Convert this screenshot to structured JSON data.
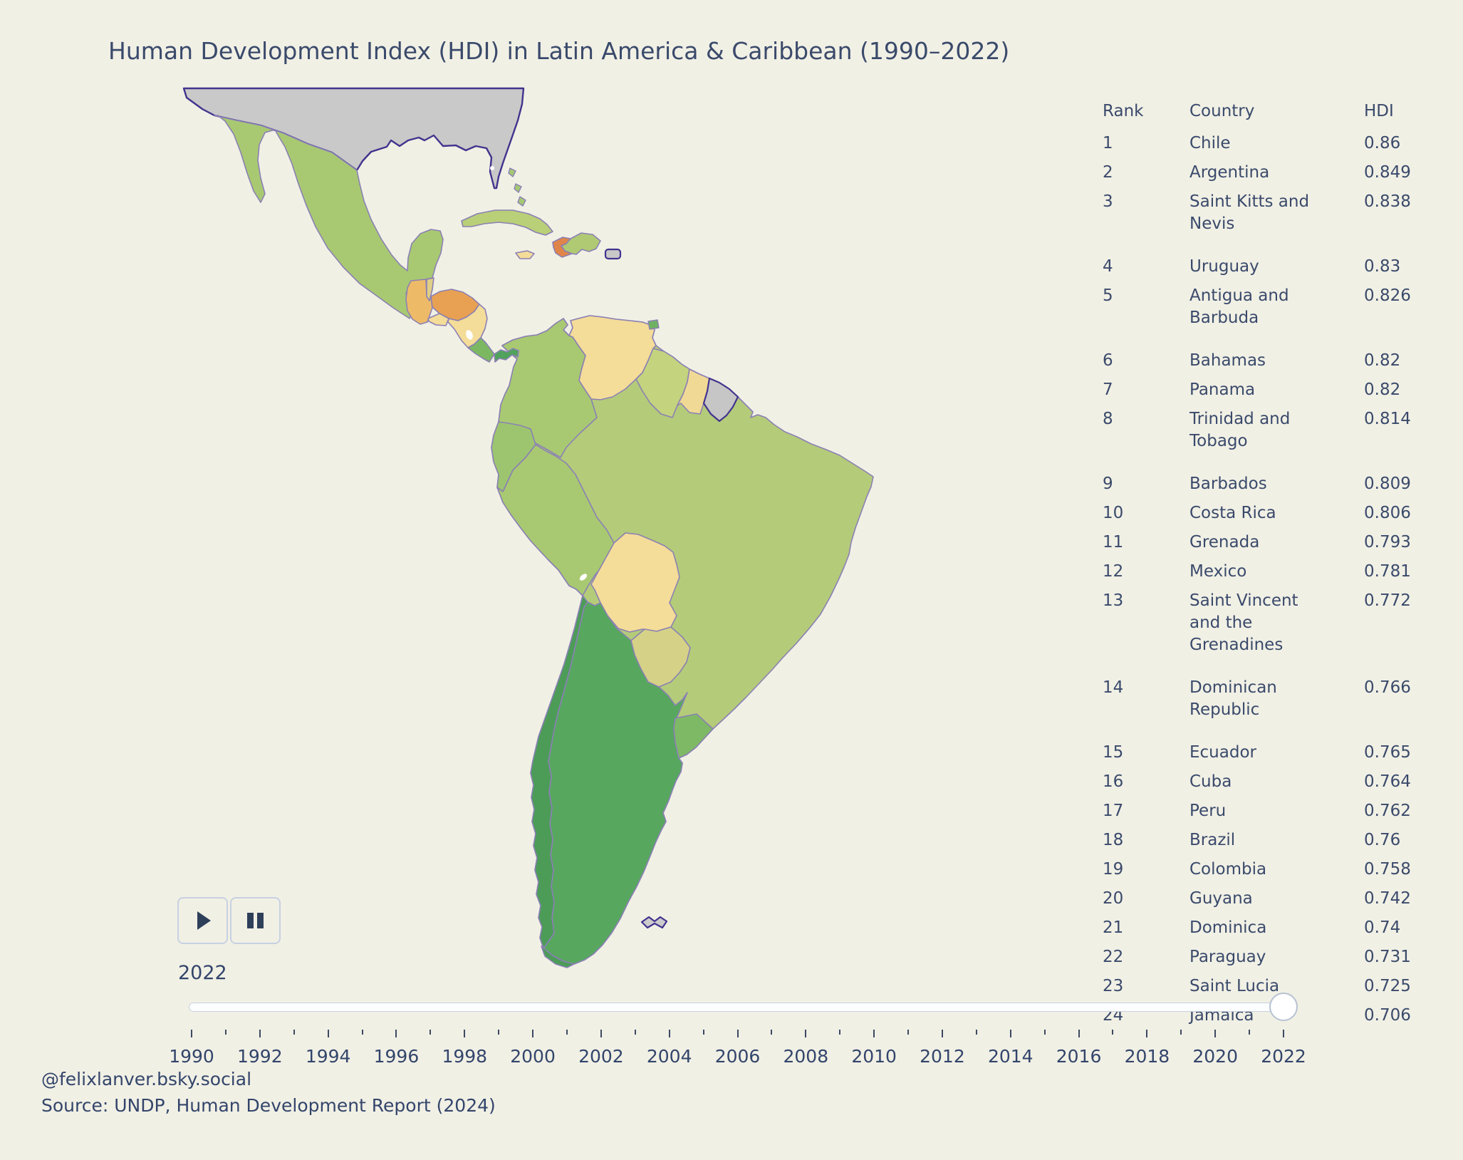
{
  "title": "Human Development Index (HDI) in Latin America & Caribbean (1990–2022)",
  "table": {
    "headers": {
      "rank": "Rank",
      "country": "Country",
      "hdi": "HDI"
    },
    "rows": [
      {
        "rank": "1",
        "country": "Chile",
        "hdi": "0.86"
      },
      {
        "rank": "2",
        "country": "Argentina",
        "hdi": "0.849"
      },
      {
        "rank": "3",
        "country": "Saint Kitts and Nevis",
        "hdi": "0.838"
      },
      {
        "rank": "4",
        "country": "Uruguay",
        "hdi": "0.83"
      },
      {
        "rank": "5",
        "country": "Antigua and Barbuda",
        "hdi": "0.826"
      },
      {
        "rank": "6",
        "country": "Bahamas",
        "hdi": "0.82"
      },
      {
        "rank": "7",
        "country": "Panama",
        "hdi": "0.82"
      },
      {
        "rank": "8",
        "country": "Trinidad and Tobago",
        "hdi": "0.814"
      },
      {
        "rank": "9",
        "country": "Barbados",
        "hdi": "0.809"
      },
      {
        "rank": "10",
        "country": "Costa Rica",
        "hdi": "0.806"
      },
      {
        "rank": "11",
        "country": "Grenada",
        "hdi": "0.793"
      },
      {
        "rank": "12",
        "country": "Mexico",
        "hdi": "0.781"
      },
      {
        "rank": "13",
        "country": "Saint Vincent and the Grenadines",
        "hdi": "0.772"
      },
      {
        "rank": "14",
        "country": "Dominican Republic",
        "hdi": "0.766"
      },
      {
        "rank": "15",
        "country": "Ecuador",
        "hdi": "0.765"
      },
      {
        "rank": "16",
        "country": "Cuba",
        "hdi": "0.764"
      },
      {
        "rank": "17",
        "country": "Peru",
        "hdi": "0.762"
      },
      {
        "rank": "18",
        "country": "Brazil",
        "hdi": "0.76"
      },
      {
        "rank": "19",
        "country": "Colombia",
        "hdi": "0.758"
      },
      {
        "rank": "20",
        "country": "Guyana",
        "hdi": "0.742"
      },
      {
        "rank": "21",
        "country": "Dominica",
        "hdi": "0.74"
      },
      {
        "rank": "22",
        "country": "Paraguay",
        "hdi": "0.731"
      },
      {
        "rank": "23",
        "country": "Saint Lucia",
        "hdi": "0.725"
      },
      {
        "rank": "24",
        "country": "Jamaica",
        "hdi": "0.706"
      }
    ]
  },
  "controls": {
    "year_display": "2022"
  },
  "slider": {
    "start_year": 1990,
    "end_year": 2022,
    "current_year": 2022,
    "tick_labels": [
      "1990",
      "1992",
      "1994",
      "1996",
      "1998",
      "2000",
      "2002",
      "2004",
      "2006",
      "2008",
      "2010",
      "2012",
      "2014",
      "2016",
      "2018",
      "2020",
      "2022"
    ]
  },
  "attribution": {
    "line1": "@felixlanver.bsky.social",
    "line2": "Source: UNDP, Human Development Report (2024)"
  },
  "colors": {
    "background": "#f1f0e5",
    "text": "#3a4a6b",
    "border_internal": "#8b80b4",
    "border_external": "#42338e",
    "lake": "#ffffff"
  },
  "map": {
    "fills": {
      "usa": "#c9c9c9",
      "mexico": "#a8c972",
      "guatemala": "#edbb68",
      "belize": "#e0cf86",
      "honduras": "#e8a152",
      "el_salvador": "#f4dc99",
      "nicaragua": "#f4dc99",
      "costa_rica": "#7cb862",
      "panama": "#51a25c",
      "cuba": "#b9cf78",
      "jamaica": "#f4dc99",
      "haiti": "#e0854a",
      "dominican_republic": "#b0ca74",
      "puerto_rico": "#c9c9c9",
      "bahamas": "#a4c873",
      "trinidad_and_tobago": "#6fb163",
      "brazil": "#b4cb7a",
      "colombia": "#a8c972",
      "venezuela": "#f4dc99",
      "guyana": "#c3d37e",
      "suriname": "#f0d995",
      "french_guiana": "#c6c6c6",
      "ecuador": "#9dc56f",
      "peru": "#a8c972",
      "bolivia": "#f4dc99",
      "paraguay": "#d5d287",
      "argentina": "#57a75f",
      "chile": "#4c9c58",
      "chile_tdf": "#4c9c58",
      "uruguay": "#7eb965",
      "falkland_islands": "#cccccc"
    }
  },
  "chart_data": {
    "type": "choropleth",
    "title": "Human Development Index (HDI) in Latin America & Caribbean (1990–2022)",
    "variable": "HDI",
    "current_year": 2022,
    "year_range": [
      1990,
      2022
    ],
    "legend_position": "none",
    "colorscale_note": "orange = low HDI, dark green = high HDI; gray = outside region / no data",
    "values": [
      {
        "country": "Chile",
        "hdi": 0.86
      },
      {
        "country": "Argentina",
        "hdi": 0.849
      },
      {
        "country": "Saint Kitts and Nevis",
        "hdi": 0.838
      },
      {
        "country": "Uruguay",
        "hdi": 0.83
      },
      {
        "country": "Antigua and Barbuda",
        "hdi": 0.826
      },
      {
        "country": "Bahamas",
        "hdi": 0.82
      },
      {
        "country": "Panama",
        "hdi": 0.82
      },
      {
        "country": "Trinidad and Tobago",
        "hdi": 0.814
      },
      {
        "country": "Barbados",
        "hdi": 0.809
      },
      {
        "country": "Costa Rica",
        "hdi": 0.806
      },
      {
        "country": "Grenada",
        "hdi": 0.793
      },
      {
        "country": "Mexico",
        "hdi": 0.781
      },
      {
        "country": "Saint Vincent and the Grenadines",
        "hdi": 0.772
      },
      {
        "country": "Dominican Republic",
        "hdi": 0.766
      },
      {
        "country": "Ecuador",
        "hdi": 0.765
      },
      {
        "country": "Cuba",
        "hdi": 0.764
      },
      {
        "country": "Peru",
        "hdi": 0.762
      },
      {
        "country": "Brazil",
        "hdi": 0.76
      },
      {
        "country": "Colombia",
        "hdi": 0.758
      },
      {
        "country": "Guyana",
        "hdi": 0.742
      },
      {
        "country": "Dominica",
        "hdi": 0.74
      },
      {
        "country": "Paraguay",
        "hdi": 0.731
      },
      {
        "country": "Saint Lucia",
        "hdi": 0.725
      },
      {
        "country": "Jamaica",
        "hdi": 0.706
      }
    ]
  }
}
